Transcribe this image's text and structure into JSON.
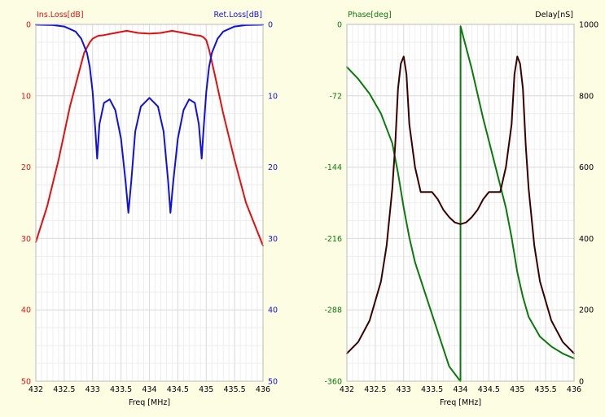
{
  "colors": {
    "background": "#fdfde4",
    "plot_background": "#ffffff",
    "grid": "#dcdcdc",
    "ins_loss": "#e01010",
    "ret_loss": "#1010e0",
    "phase": "#0a7a0a",
    "delay": "#3a0000",
    "axis_text": "#000000"
  },
  "chart_data": [
    {
      "type": "line",
      "xlabel": "Freq [MHz]",
      "ylabel_left": "Ins.Loss[dB]",
      "ylabel_right": "Ret.Loss[dB]",
      "xlim": [
        432,
        436
      ],
      "ylim_left": [
        0,
        50
      ],
      "ylim_right": [
        0,
        50
      ],
      "y_inverted": true,
      "grid": true,
      "x_ticks": [
        "432",
        "432.5",
        "433",
        "433.5",
        "434",
        "434.5",
        "435",
        "435.5",
        "436"
      ],
      "y_left_ticks": [
        "0",
        "10",
        "20",
        "30",
        "40",
        "50"
      ],
      "y_right_ticks": [
        "0",
        "10",
        "20",
        "30",
        "40",
        "50"
      ],
      "series": [
        {
          "name": "Ins.Loss[dB]",
          "axis": "left",
          "color": "#e01010",
          "x": [
            432.0,
            432.2,
            432.4,
            432.6,
            432.75,
            432.85,
            432.95,
            433.0,
            433.05,
            433.1,
            433.2,
            433.4,
            433.6,
            433.8,
            434.0,
            434.2,
            434.4,
            434.6,
            434.8,
            434.9,
            434.95,
            435.0,
            435.05,
            435.15,
            435.3,
            435.5,
            435.7,
            435.9,
            436.0
          ],
          "y": [
            30.5,
            25.5,
            19.0,
            11.5,
            7.0,
            4.0,
            2.5,
            2.0,
            1.8,
            1.6,
            1.5,
            1.2,
            0.9,
            1.2,
            1.3,
            1.2,
            0.9,
            1.2,
            1.5,
            1.6,
            1.8,
            2.2,
            3.5,
            7.0,
            12.5,
            19.0,
            25.0,
            29.0,
            31.0
          ]
        },
        {
          "name": "Ret.Loss[dB]",
          "axis": "right",
          "color": "#1010e0",
          "x": [
            432.0,
            432.3,
            432.5,
            432.7,
            432.8,
            432.9,
            432.95,
            433.0,
            433.05,
            433.08,
            433.12,
            433.2,
            433.3,
            433.4,
            433.5,
            433.58,
            433.63,
            433.68,
            433.75,
            433.85,
            434.0,
            434.15,
            434.25,
            434.33,
            434.37,
            434.42,
            434.5,
            434.6,
            434.7,
            434.8,
            434.87,
            434.92,
            434.95,
            435.0,
            435.05,
            435.1,
            435.2,
            435.3,
            435.5,
            435.7,
            436.0
          ],
          "y": [
            0.05,
            0.1,
            0.3,
            1.0,
            2.0,
            4.0,
            6.0,
            9.5,
            15.0,
            18.8,
            14.0,
            11.0,
            10.5,
            12.0,
            16.0,
            22.0,
            26.4,
            22.0,
            15.0,
            11.5,
            10.3,
            11.5,
            15.0,
            22.0,
            26.4,
            22.0,
            16.0,
            12.0,
            10.5,
            11.0,
            14.0,
            18.8,
            15.0,
            9.5,
            6.0,
            4.0,
            2.0,
            1.0,
            0.3,
            0.1,
            0.05
          ]
        }
      ]
    },
    {
      "type": "line",
      "xlabel": "Freq [MHz]",
      "ylabel_left": "Phase[deg]",
      "ylabel_right": "Delay[nS]",
      "xlim": [
        432,
        436
      ],
      "ylim_left": [
        -360,
        0
      ],
      "ylim_right": [
        0,
        1000
      ],
      "grid": true,
      "x_ticks": [
        "432",
        "432.5",
        "433",
        "433.5",
        "434",
        "434.5",
        "435",
        "435.5",
        "436"
      ],
      "y_left_ticks": [
        "0",
        "-72",
        "-144",
        "-216",
        "-288",
        "-360"
      ],
      "y_right_ticks": [
        "1000",
        "800",
        "600",
        "400",
        "200",
        "0"
      ],
      "series": [
        {
          "name": "Phase[deg]",
          "axis": "left",
          "color": "#0a7a0a",
          "x": [
            432.0,
            432.2,
            432.4,
            432.6,
            432.8,
            432.9,
            433.0,
            433.1,
            433.2,
            433.4,
            433.6,
            433.8,
            433.999,
            434.0,
            434.001,
            434.2,
            434.4,
            434.6,
            434.8,
            434.9,
            435.0,
            435.1,
            435.2,
            435.4,
            435.6,
            435.8,
            436.0
          ],
          "y": [
            -43,
            -55,
            -70,
            -90,
            -120,
            -150,
            -185,
            -215,
            -240,
            -275,
            -310,
            -345,
            -360,
            -360,
            -2,
            -45,
            -95,
            -140,
            -185,
            -215,
            -250,
            -275,
            -295,
            -315,
            -325,
            -332,
            -337
          ]
        },
        {
          "name": "Delay[nS]",
          "axis": "right",
          "color": "#3a0000",
          "x": [
            432.0,
            432.2,
            432.4,
            432.6,
            432.7,
            432.8,
            432.85,
            432.9,
            432.95,
            433.0,
            433.05,
            433.1,
            433.2,
            433.3,
            433.4,
            433.5,
            433.6,
            433.7,
            433.8,
            433.9,
            434.0,
            434.1,
            434.2,
            434.3,
            434.4,
            434.5,
            434.6,
            434.7,
            434.8,
            434.9,
            434.95,
            435.0,
            435.05,
            435.1,
            435.15,
            435.2,
            435.3,
            435.4,
            435.6,
            435.8,
            436.0
          ],
          "y": [
            78,
            110,
            170,
            280,
            380,
            540,
            660,
            820,
            890,
            910,
            860,
            720,
            600,
            530,
            530,
            530,
            510,
            480,
            460,
            445,
            440,
            445,
            460,
            480,
            510,
            530,
            530,
            530,
            600,
            720,
            860,
            910,
            890,
            820,
            660,
            540,
            380,
            280,
            170,
            110,
            78
          ]
        }
      ]
    }
  ]
}
